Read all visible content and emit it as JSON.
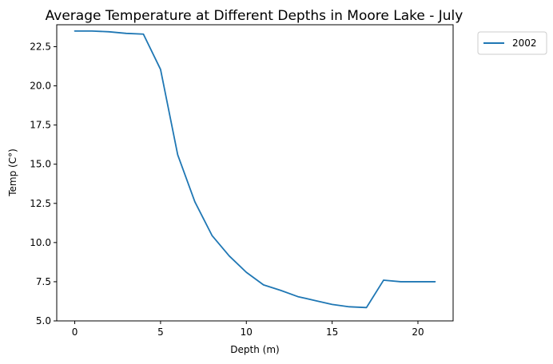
{
  "chart_data": {
    "type": "line",
    "title": "Average Temperature at Different Depths in Moore Lake - July",
    "xlabel": "Depth (m)",
    "ylabel": "Temp (C°)",
    "xlim": [
      -1.05,
      22.05
    ],
    "ylim": [
      5.0,
      23.9
    ],
    "xticks": [
      0,
      5,
      10,
      15,
      20
    ],
    "xtick_labels": [
      "0",
      "5",
      "10",
      "15",
      "20"
    ],
    "yticks": [
      5.0,
      7.5,
      10.0,
      12.5,
      15.0,
      17.5,
      20.0,
      22.5
    ],
    "ytick_labels": [
      "5.0",
      "7.5",
      "10.0",
      "12.5",
      "15.0",
      "17.5",
      "20.0",
      "22.5"
    ],
    "grid": false,
    "legend_position": "outside-top-right",
    "series": [
      {
        "name": "2002",
        "color": "#1f77b4",
        "x": [
          0,
          1,
          2,
          3,
          4,
          5,
          6,
          7,
          8,
          9,
          10,
          11,
          12,
          13,
          14,
          15,
          16,
          17,
          18,
          19,
          20,
          21
        ],
        "y": [
          23.5,
          23.5,
          23.45,
          23.35,
          23.3,
          21.05,
          15.6,
          12.6,
          10.45,
          9.15,
          8.1,
          7.3,
          6.95,
          6.55,
          6.3,
          6.05,
          5.9,
          5.85,
          7.6,
          7.5,
          7.5,
          7.5
        ]
      }
    ]
  }
}
